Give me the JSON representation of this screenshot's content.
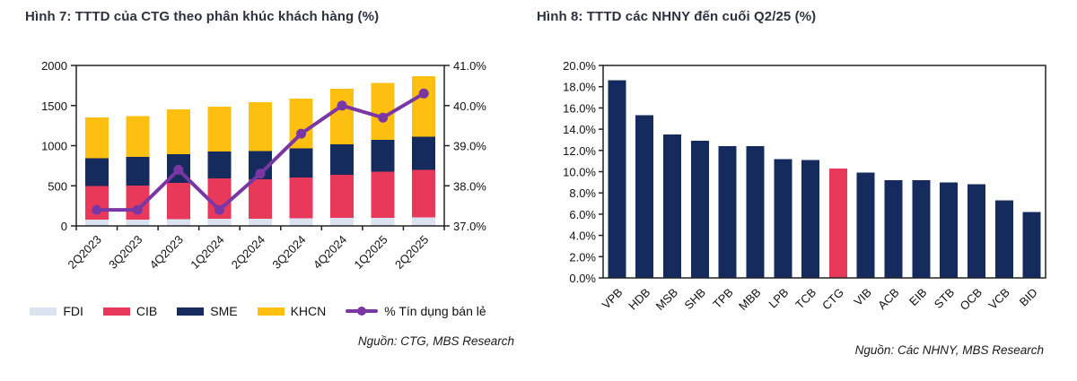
{
  "figure7": {
    "title": "Hình 7: TTTD của CTG theo phân khúc khách hàng (%)",
    "source": "Nguồn: CTG, MBS Research"
  },
  "figure8": {
    "title": "Hình 8: TTTD các NHNY đến cuối Q2/25 (%)",
    "source": "Nguồn: Các NHNY, MBS Research"
  },
  "chart_data": [
    {
      "type": "bar",
      "stacked": true,
      "title": "Hình 7: TTTD của CTG theo phân khúc khách hàng (%)",
      "categories": [
        "2Q2023",
        "3Q2023",
        "4Q2023",
        "1Q2024",
        "2Q2024",
        "3Q2024",
        "4Q2024",
        "1Q2025",
        "2Q2025"
      ],
      "series": [
        {
          "name": "FDI",
          "color": "#dbe2f0",
          "values": [
            80,
            80,
            85,
            90,
            90,
            95,
            100,
            100,
            105
          ]
        },
        {
          "name": "CIB",
          "color": "#e9395b",
          "values": [
            420,
            425,
            450,
            500,
            490,
            510,
            535,
            575,
            595
          ]
        },
        {
          "name": "SME",
          "color": "#152b5e",
          "values": [
            345,
            355,
            360,
            340,
            355,
            360,
            380,
            395,
            410
          ]
        },
        {
          "name": "KHCN",
          "color": "#fdc011",
          "values": [
            505,
            510,
            560,
            555,
            605,
            620,
            695,
            710,
            755
          ]
        }
      ],
      "line_series": {
        "name": "% Tín dụng bán lẻ",
        "color": "#7a36a2",
        "axis": "right",
        "values": [
          37.4,
          37.4,
          38.4,
          37.4,
          38.3,
          39.3,
          40.0,
          39.7,
          40.3
        ]
      },
      "y_left": {
        "lim": [
          0,
          2000
        ],
        "ticks": [
          "0",
          "500",
          "1000",
          "1500",
          "2000"
        ]
      },
      "y_right": {
        "lim": [
          37,
          41
        ],
        "ticks": [
          "37.0%",
          "38.0%",
          "39.0%",
          "40.0%",
          "41.0%"
        ]
      },
      "grid": false,
      "legend_position": "bottom"
    },
    {
      "type": "bar",
      "title": "Hình 8: TTTD các NHNY đến cuối Q2/25 (%)",
      "categories": [
        "VPB",
        "HDB",
        "MSB",
        "SHB",
        "TPB",
        "MBB",
        "LPB",
        "TCB",
        "CTG",
        "VIB",
        "ACB",
        "EIB",
        "STB",
        "OCB",
        "VCB",
        "BID"
      ],
      "values": [
        18.6,
        15.3,
        13.5,
        12.9,
        12.4,
        12.4,
        11.2,
        11.1,
        10.3,
        9.9,
        9.2,
        9.2,
        9.0,
        8.8,
        7.3,
        6.2
      ],
      "bar_color": "#152b5e",
      "highlight": {
        "category": "CTG",
        "color": "#e9395b"
      },
      "ylim": [
        0,
        20
      ],
      "y_ticks": [
        "0.0%",
        "2.0%",
        "4.0%",
        "6.0%",
        "8.0%",
        "10.0%",
        "12.0%",
        "14.0%",
        "16.0%",
        "18.0%",
        "20.0%"
      ],
      "grid": false,
      "legend_position": "none"
    }
  ]
}
